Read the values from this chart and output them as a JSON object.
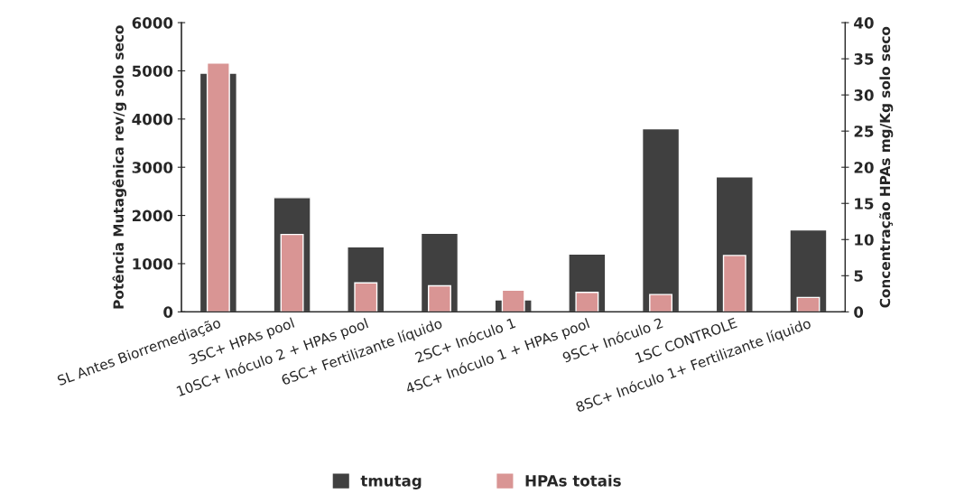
{
  "chart_data": {
    "type": "bar",
    "categories": [
      "SL Antes Biorremediação",
      "3SC+ HPAs pool",
      "10SC+ Inóculo 2 + HPAs pool",
      "6SC+ Fertilizante líquido",
      "2SC+ Inóculo 1",
      "4SC+ Inóculo 1 + HPAs pool",
      "9SC+ Inóculo 2",
      "1SC CONTROLE",
      "8SC+ Inóculo 1+ Fertilizante líquido"
    ],
    "series": [
      {
        "name": "tmutag",
        "color": "#404040",
        "values": [
          4950,
          2370,
          1350,
          1630,
          250,
          1200,
          3800,
          2800,
          1700
        ]
      },
      {
        "name": "HPAs totais",
        "color": "#d99594",
        "axis": "y2",
        "values": [
          34.4,
          10.7,
          4.0,
          3.6,
          3.0,
          2.7,
          2.4,
          7.8,
          2.0
        ]
      }
    ],
    "ylabel": "Potência Mutagênica rev/g solo seco",
    "y2label": "Concentração HPAs mg/Kg solo seco",
    "ylim": [
      0,
      6000
    ],
    "yticks": [
      0,
      1000,
      2000,
      3000,
      4000,
      5000,
      6000
    ],
    "y2lim": [
      0,
      40
    ],
    "y2ticks": [
      0,
      5,
      10,
      15,
      20,
      25,
      30,
      35,
      40
    ],
    "grid": false,
    "legend": "bottom"
  }
}
